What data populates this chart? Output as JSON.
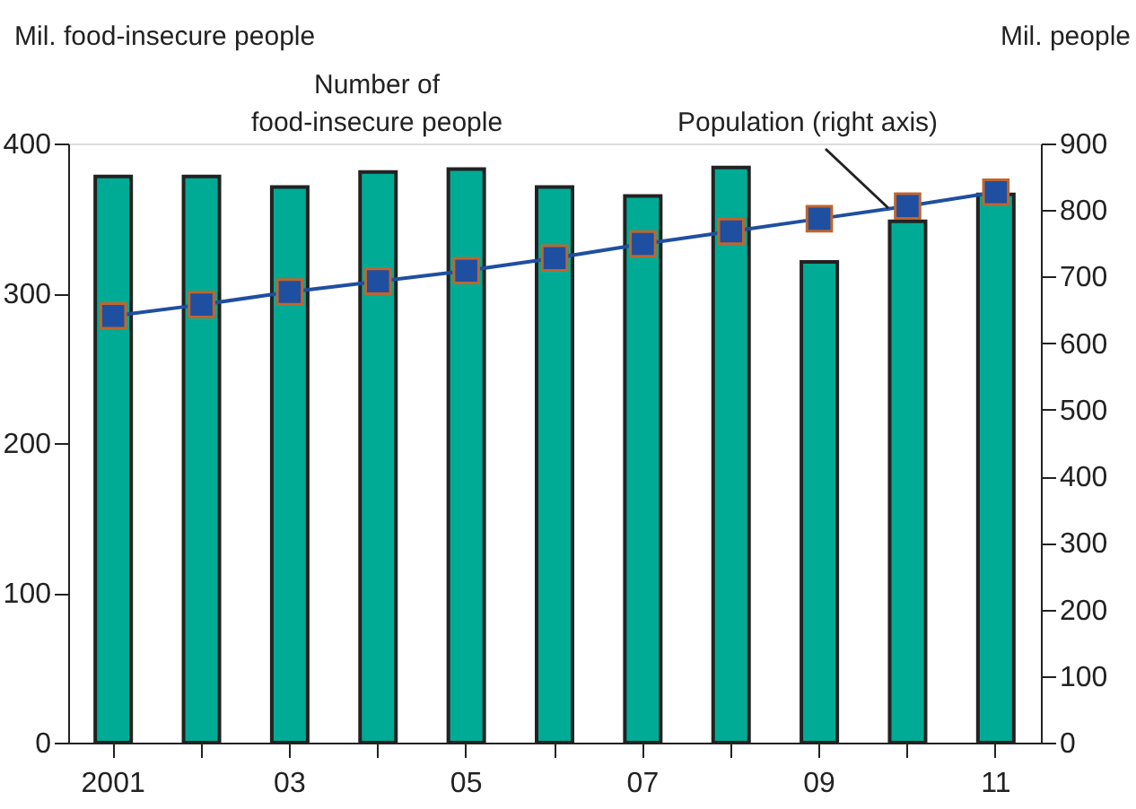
{
  "chart_data": {
    "type": "bar",
    "ylabel": "Mil. food-insecure people",
    "y2label": "Mil. people",
    "categories": [
      "2001",
      null,
      "03",
      null,
      "05",
      null,
      "07",
      null,
      "09",
      null,
      "11"
    ],
    "series": [
      {
        "name": "Number of\nfood-insecure people",
        "color": "#00ab96",
        "values": [
          378,
          378,
          371,
          381,
          383,
          371,
          365,
          384,
          321,
          348,
          366
        ]
      },
      {
        "name": "Population (right axis)",
        "type": "line",
        "axis": "y2",
        "color": "#1f4fa0",
        "marker": "square",
        "values": [
          641,
          658,
          677,
          693,
          709,
          728,
          749,
          768,
          787,
          806,
          827
        ]
      }
    ],
    "ylim": [
      0,
      400
    ],
    "yticks": [
      0,
      100,
      200,
      300,
      400
    ],
    "y2lim": [
      0,
      900
    ],
    "y2ticks": [
      0,
      100,
      200,
      300,
      400,
      500,
      600,
      700,
      800,
      900
    ],
    "grid": false
  }
}
